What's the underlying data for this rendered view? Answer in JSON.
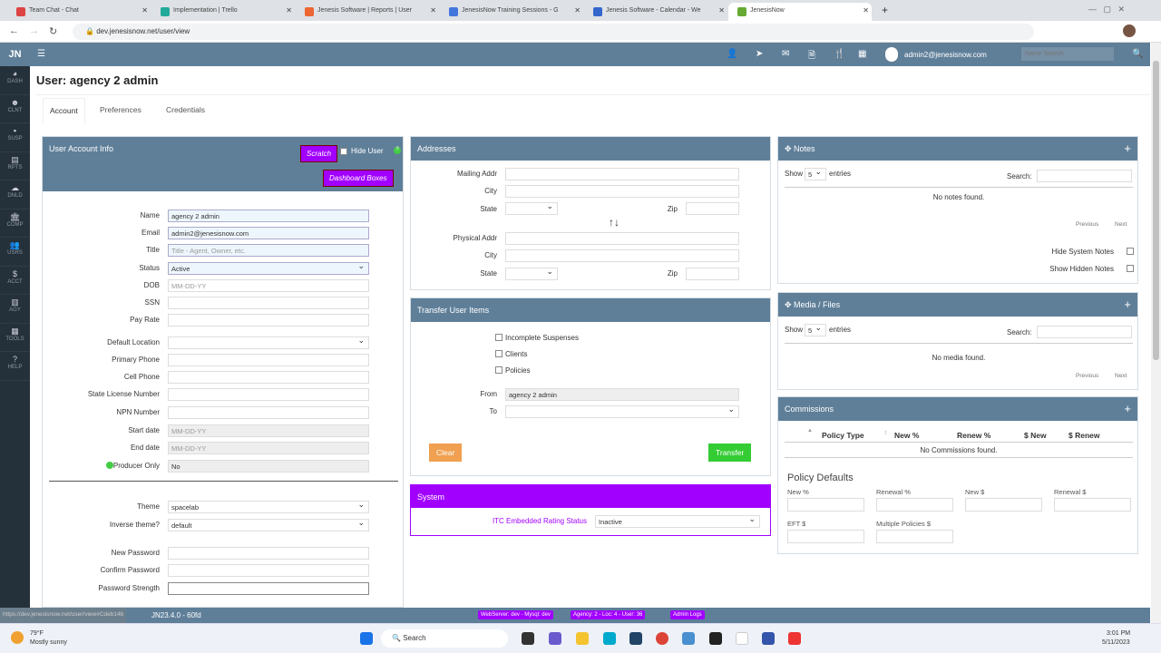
{
  "browser": {
    "tabs": [
      {
        "title": "Team Chat - Chat",
        "color": "#d44"
      },
      {
        "title": "Implementation | Trello",
        "color": "#2a9"
      },
      {
        "title": "Jenesis Software | Reports | User",
        "color": "#e63"
      },
      {
        "title": "JenesisNow Training Sessions - G",
        "color": "#47d"
      },
      {
        "title": "Jenesis Software - Calendar - We",
        "color": "#36c"
      },
      {
        "title": "JenesisNow",
        "color": "#6a3"
      }
    ],
    "url": "dev.jenesisnow.net/user/view"
  },
  "sidebar": {
    "logo": "JN",
    "items": [
      {
        "icon": "◕",
        "label": "DASH"
      },
      {
        "icon": "☻",
        "label": "CLNT"
      },
      {
        "icon": "▪",
        "label": "SUSP"
      },
      {
        "icon": "▤",
        "label": "RPTS"
      },
      {
        "icon": "☁",
        "label": "DNLD"
      },
      {
        "icon": "🏛",
        "label": "COMP"
      },
      {
        "icon": "👥",
        "label": "USRS"
      },
      {
        "icon": "$",
        "label": "ACCT"
      },
      {
        "icon": "▥",
        "label": "AGY"
      },
      {
        "icon": "▦",
        "label": "TOOLS"
      },
      {
        "icon": "?",
        "label": "HELP"
      }
    ]
  },
  "topbar": {
    "user": "admin2@jenesisnow.com",
    "search_placeholder": "Name Search"
  },
  "page": {
    "title": "User: agency 2 admin",
    "tabs": [
      "Account",
      "Preferences",
      "Credentials"
    ],
    "active_tab": "Account"
  },
  "account": {
    "header": "User Account Info",
    "scratch": "Scratch",
    "hide_user": "Hide User",
    "dashboard_boxes": "Dashboard Boxes",
    "fields": {
      "name_label": "Name",
      "name": "agency 2 admin",
      "email_label": "Email",
      "email": "admin2@jenesisnow.com",
      "title_label": "Title",
      "title_ph": "Title - Agent, Owner, etc.",
      "status_label": "Status",
      "status": "Active",
      "dob_label": "DOB",
      "dob_ph": "MM-DD-YY",
      "ssn_label": "SSN",
      "pay_label": "Pay Rate",
      "loc_label": "Default Location",
      "phone_label": "Primary Phone",
      "cell_label": "Cell Phone",
      "license_label": "State License Number",
      "npn_label": "NPN Number",
      "start_label": "Start date",
      "start_ph": "MM-DD-YY",
      "end_label": "End date",
      "end_ph": "MM-DD-YY",
      "producer_label": "Producer Only",
      "producer": "No",
      "theme_label": "Theme",
      "theme": "spacelab",
      "inverse_label": "Inverse theme?",
      "inverse": "default",
      "newpw_label": "New Password",
      "confirm_label": "Confirm Password",
      "strength_label": "Password Strength"
    }
  },
  "addresses": {
    "header": "Addresses",
    "mailing": "Mailing Addr",
    "city": "City",
    "state": "State",
    "zip": "Zip",
    "physical": "Physical Addr"
  },
  "transfer": {
    "header": "Transfer User Items",
    "options": [
      "Incomplete Suspenses",
      "Clients",
      "Policies"
    ],
    "from_label": "From",
    "from": "agency 2 admin",
    "to_label": "To",
    "clear": "Clear",
    "transfer": "Transfer"
  },
  "system": {
    "header": "System",
    "itc_label": "ITC Embedded Rating Status",
    "itc": "Inactive"
  },
  "notes": {
    "header": "Notes",
    "show": "Show",
    "entries_val": "5",
    "entries": "entries",
    "search": "Search:",
    "empty": "No notes found.",
    "prev": "Previous",
    "next": "Next",
    "hide_system": "Hide System Notes",
    "show_hidden": "Show Hidden Notes"
  },
  "media": {
    "header": "Media / Files",
    "show": "Show",
    "entries_val": "5",
    "entries": "entries",
    "search": "Search:",
    "empty": "No media found.",
    "prev": "Previous",
    "next": "Next"
  },
  "commissions": {
    "header": "Commissions",
    "columns": [
      "Policy Type",
      "New %",
      "Renew %",
      "$ New",
      "$ Renew"
    ],
    "empty": "No Commissions found.",
    "defaults_title": "Policy Defaults",
    "defaults": [
      "New %",
      "Renewal %",
      "New $",
      "Renewal $",
      "EFT $",
      "Multiple Policies $"
    ]
  },
  "status": {
    "link": "https://dev.jenesisnow.net/user/view#Cdeb14b",
    "version": "JN23.4.0 - 60fd",
    "badges": [
      "WebServer: dev - Mysql: dev",
      "Agency: 2 - Loc: 4 - User: 36",
      "Admin Logs"
    ]
  },
  "taskbar": {
    "temp": "79°F",
    "weather": "Mostly sunny",
    "search": "Search",
    "time": "3:01 PM",
    "date": "5/11/2023"
  },
  "colors": {
    "header": "#5f7f99",
    "accent": "#a100ff",
    "sidebar": "#25313a",
    "clear": "#f0a050",
    "transfer": "#3c3"
  }
}
